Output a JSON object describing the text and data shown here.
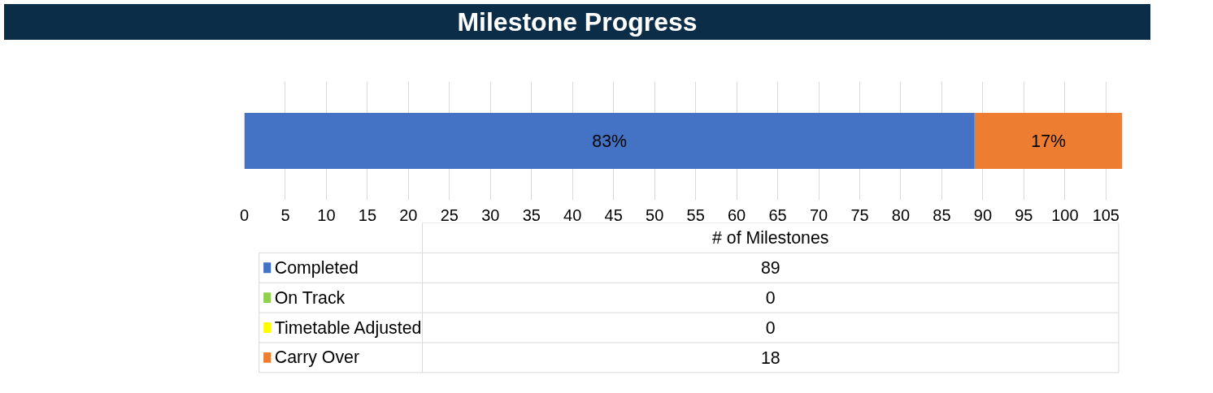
{
  "chart_data": [
    {
      "type": "bar",
      "orientation": "horizontal",
      "stacked": true,
      "title": "Milestone Progress",
      "categories": [
        null
      ],
      "series": [
        {
          "name": "Completed",
          "color": "#4472c4",
          "values": [
            89
          ]
        },
        {
          "name": "On Track",
          "color": "#92d050",
          "values": [
            0
          ]
        },
        {
          "name": "Timetable Adjusted",
          "color": "#ffff00",
          "values": [
            0
          ]
        },
        {
          "name": "Carry Over",
          "color": "#ed7d31",
          "values": [
            18
          ]
        }
      ],
      "xlim": [
        0,
        107
      ],
      "xticks": [
        0,
        5,
        10,
        15,
        20,
        25,
        30,
        35,
        40,
        45,
        50,
        55,
        60,
        65,
        70,
        75,
        80,
        85,
        90,
        95,
        100,
        105
      ],
      "grid": "x",
      "legend": "bottom",
      "annotations": [
        "83%",
        "17%"
      ]
    },
    {
      "type": "other",
      "title": "# of Milestones",
      "categories": [
        null,
        null,
        null,
        null
      ],
      "values": [
        89,
        0,
        0,
        18
      ],
      "data_labels": true
    }
  ]
}
